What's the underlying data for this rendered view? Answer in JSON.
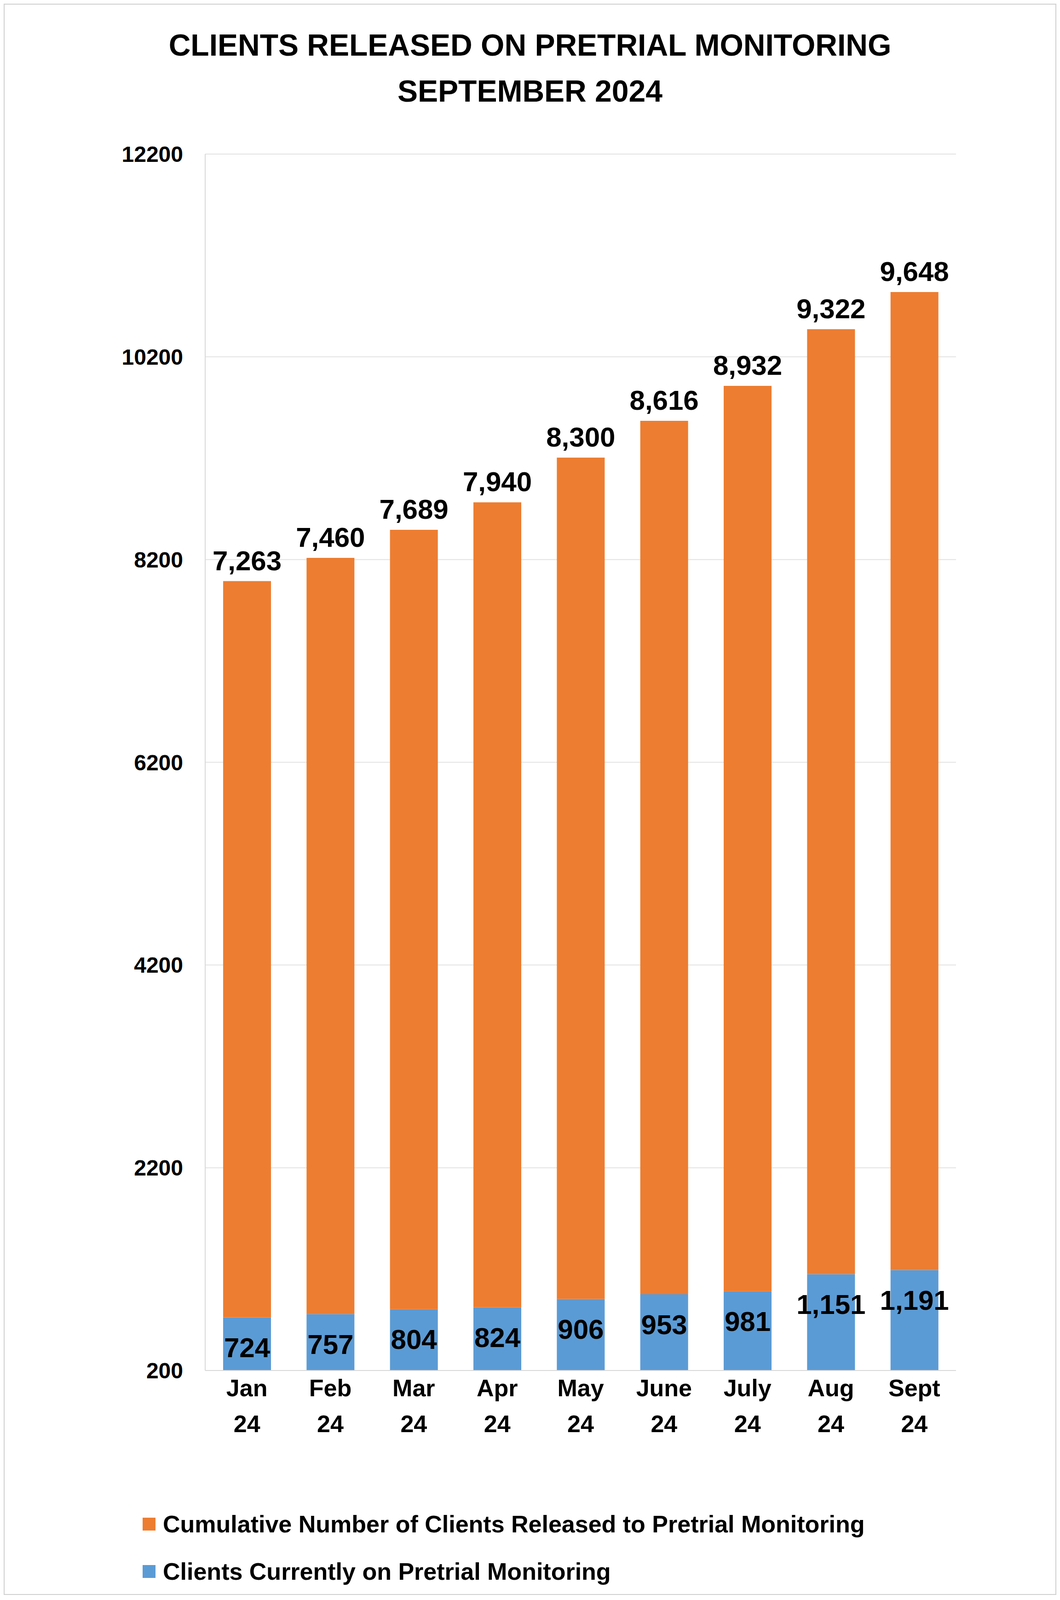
{
  "chart_data": {
    "type": "bar",
    "title": "CLIENTS RELEASED ON PRETRIAL MONITORING",
    "subtitle": "SEPTEMBER 2024",
    "categories": [
      "Jan 24",
      "Feb 24",
      "Mar 24",
      "Apr 24",
      "May 24",
      "June 24",
      "July 24",
      "Aug 24",
      "Sept 24"
    ],
    "series": [
      {
        "name": "Clients Currently on Pretrial Monitoring",
        "color": "#5b9bd5",
        "values": [
          724,
          757,
          804,
          824,
          906,
          953,
          981,
          1151,
          1191
        ],
        "value_labels": [
          "724",
          "757",
          "804",
          "824",
          "906",
          "953",
          "981",
          "1,151",
          "1,191"
        ]
      },
      {
        "name": "Cumulative Number of Clients Released to Pretrial Monitoring",
        "color": "#ed7d31",
        "values": [
          7263,
          7460,
          7689,
          7940,
          8300,
          8616,
          8932,
          9322,
          9648
        ],
        "value_labels": [
          "7,263",
          "7,460",
          "7,689",
          "7,940",
          "8,300",
          "8,616",
          "8,932",
          "9,322",
          "9,648"
        ]
      }
    ],
    "stacked": true,
    "data_labels": true,
    "ylim": [
      200,
      12200
    ],
    "yticks": [
      200,
      2200,
      4200,
      6200,
      8200,
      10200,
      12200
    ],
    "grid": true,
    "legend": "bottom"
  }
}
